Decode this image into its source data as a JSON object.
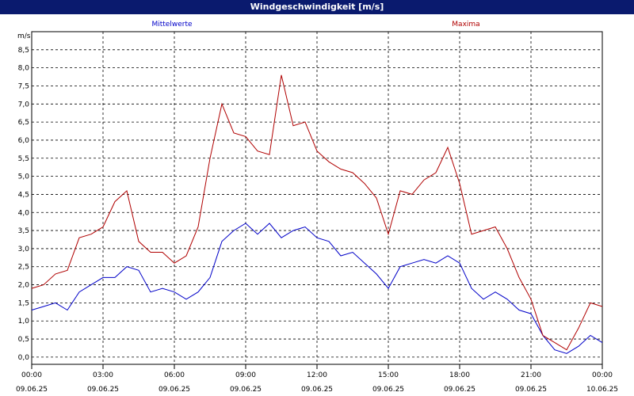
{
  "chart_data": {
    "type": "line",
    "title": "Windgeschwindigkeit [m/s]",
    "ylabel": "m/s",
    "ylim": [
      -0.2,
      9.0
    ],
    "yticks": [
      "0,0",
      "0,5",
      "1,0",
      "1,5",
      "2,0",
      "2,5",
      "3,0",
      "3,5",
      "4,0",
      "4,5",
      "5,0",
      "5,5",
      "6,0",
      "6,5",
      "7,0",
      "7,5",
      "8,0",
      "8,5"
    ],
    "xlim": [
      0,
      24
    ],
    "xticks": [
      {
        "time": "00:00",
        "date": "09.06.25"
      },
      {
        "time": "03:00",
        "date": "09.06.25"
      },
      {
        "time": "06:00",
        "date": "09.06.25"
      },
      {
        "time": "09:00",
        "date": "09.06.25"
      },
      {
        "time": "12:00",
        "date": "09.06.25"
      },
      {
        "time": "15:00",
        "date": "09.06.25"
      },
      {
        "time": "18:00",
        "date": "09.06.25"
      },
      {
        "time": "21:00",
        "date": "09.06.25"
      },
      {
        "time": "00:00",
        "date": "10.06.25"
      }
    ],
    "grid": true,
    "series": [
      {
        "name": "Mittelwerte",
        "color": "#0000c8",
        "x": [
          0,
          0.5,
          1,
          1.5,
          2,
          2.5,
          3,
          3.5,
          4,
          4.5,
          5,
          5.5,
          6,
          6.5,
          7,
          7.5,
          8,
          8.5,
          9,
          9.5,
          10,
          10.5,
          11,
          11.5,
          12,
          12.5,
          13,
          13.5,
          14,
          14.5,
          15,
          15.5,
          16,
          16.5,
          17,
          17.5,
          18,
          18.5,
          19,
          19.5,
          20,
          20.5,
          21,
          21.5,
          22,
          22.5,
          23,
          23.5,
          24
        ],
        "values": [
          1.3,
          1.4,
          1.5,
          1.3,
          1.8,
          2.0,
          2.2,
          2.2,
          2.5,
          2.4,
          1.8,
          1.9,
          1.8,
          1.6,
          1.8,
          2.2,
          3.2,
          3.5,
          3.7,
          3.4,
          3.7,
          3.3,
          3.5,
          3.6,
          3.3,
          3.2,
          2.8,
          2.9,
          2.6,
          2.3,
          1.9,
          2.5,
          2.6,
          2.7,
          2.6,
          2.8,
          2.6,
          1.9,
          1.6,
          1.8,
          1.6,
          1.3,
          1.2,
          0.6,
          0.2,
          0.1,
          0.3,
          0.6,
          0.4
        ]
      },
      {
        "name": "Maxima",
        "color": "#b00000",
        "x": [
          0,
          0.5,
          1,
          1.5,
          2,
          2.5,
          3,
          3.5,
          4,
          4.5,
          5,
          5.5,
          6,
          6.5,
          7,
          7.5,
          8,
          8.5,
          9,
          9.5,
          10,
          10.5,
          11,
          11.5,
          12,
          12.5,
          13,
          13.5,
          14,
          14.5,
          15,
          15.5,
          16,
          16.5,
          17,
          17.5,
          18,
          18.5,
          19,
          19.5,
          20,
          20.5,
          21,
          21.5,
          22,
          22.5,
          23,
          23.5,
          24
        ],
        "values": [
          1.9,
          2.0,
          2.3,
          2.4,
          3.3,
          3.4,
          3.6,
          4.3,
          4.6,
          3.2,
          2.9,
          2.9,
          2.6,
          2.8,
          3.6,
          5.5,
          7.0,
          6.2,
          6.1,
          5.7,
          5.6,
          7.8,
          6.4,
          6.5,
          5.7,
          5.4,
          5.2,
          5.1,
          4.8,
          4.4,
          3.4,
          4.6,
          4.5,
          4.9,
          5.1,
          5.8,
          4.8,
          3.4,
          3.5,
          3.6,
          3.0,
          2.2,
          1.6,
          0.6,
          0.4,
          0.2,
          0.8,
          1.5,
          1.4
        ]
      }
    ]
  }
}
